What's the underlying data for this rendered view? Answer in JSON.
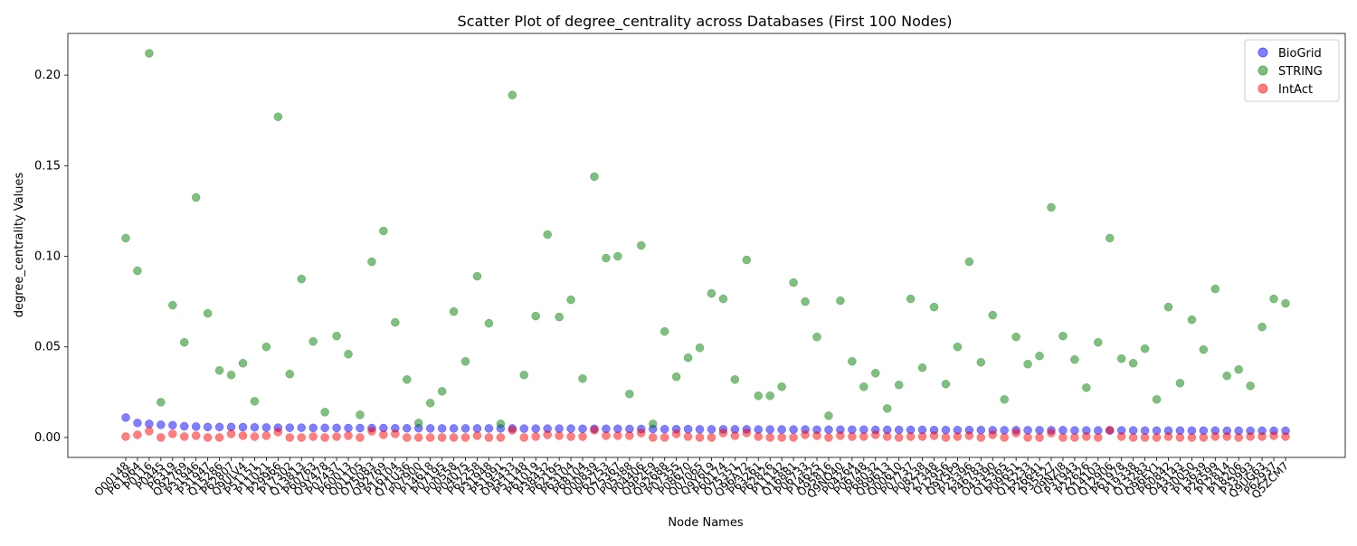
{
  "chart_data": {
    "type": "scatter",
    "title": "Scatter Plot of degree_centrality across Databases (First 100 Nodes)",
    "xlabel": "Node Names",
    "ylabel": "degree_centrality Values",
    "ylim": [
      -0.011,
      0.223
    ],
    "yticks": [
      "0.00",
      "0.05",
      "0.10",
      "0.15",
      "0.20"
    ],
    "ytick_values": [
      0,
      0.05,
      0.1,
      0.15,
      0.2
    ],
    "grid": false,
    "legend_position": "top-right",
    "categories": [
      "O00148",
      "P61964",
      "P0116",
      "P0445",
      "P6319",
      "Q92769",
      "P31946",
      "P31947",
      "Q15286",
      "P62807",
      "Q9ULV4",
      "P51151",
      "P11021",
      "P29966",
      "P17302",
      "Q13813",
      "P60763",
      "Q9Y478",
      "P07437",
      "P60013",
      "Q01105",
      "O75083",
      "Q92769",
      "P16104",
      "Q71U36",
      "P07900",
      "P14618",
      "P07195",
      "P00558",
      "P04075",
      "P62258",
      "P31948",
      "P51991",
      "O95433",
      "P51148",
      "P61019",
      "P38432",
      "P62195",
      "P63104",
      "P68104",
      "Q00839",
      "P62753",
      "O75367",
      "P05388",
      "P04406",
      "Q9P2E9",
      "Q92688",
      "P07355",
      "P08670",
      "Q07065",
      "Q9Y6L9",
      "P60174",
      "O75351",
      "Q96A72",
      "P63261",
      "P62826",
      "P11142",
      "Q16881",
      "P06733",
      "P14625",
      "O95816",
      "Q9NQ40",
      "P04264",
      "P06748",
      "P68032",
      "Q99613",
      "Q00610",
      "P07737",
      "P08238",
      "P27348",
      "P12956",
      "Q9Y5P9",
      "P23396",
      "P46783",
      "O43390",
      "Q15365",
      "P09651",
      "Q15233",
      "P26641",
      "P35527",
      "Q9NZI8",
      "P31943",
      "P22626",
      "Q14103",
      "Q12906",
      "P61978",
      "P19338",
      "Q13283",
      "Q96EY1",
      "P60842",
      "O43143",
      "P30050",
      "P13639",
      "P26599",
      "P12814",
      "P18206",
      "P33993",
      "Q9UG63",
      "P62937",
      "Q5ZCM7"
    ],
    "series": [
      {
        "name": "BioGrid",
        "color": "#0000ff",
        "values": [
          0.011,
          0.008,
          0.0075,
          0.007,
          0.0068,
          0.0062,
          0.006,
          0.0058,
          0.0058,
          0.0058,
          0.0057,
          0.0056,
          0.0055,
          0.0054,
          0.0054,
          0.0054,
          0.0053,
          0.0053,
          0.0053,
          0.0052,
          0.0052,
          0.0052,
          0.0052,
          0.0051,
          0.0051,
          0.0051,
          0.005,
          0.005,
          0.005,
          0.005,
          0.005,
          0.005,
          0.005,
          0.005,
          0.0049,
          0.0049,
          0.0049,
          0.0049,
          0.0049,
          0.0048,
          0.0048,
          0.0048,
          0.0048,
          0.0047,
          0.0047,
          0.0047,
          0.0046,
          0.0046,
          0.0046,
          0.0045,
          0.0045,
          0.0045,
          0.0045,
          0.0045,
          0.0044,
          0.0044,
          0.0044,
          0.0044,
          0.0044,
          0.0043,
          0.0043,
          0.0043,
          0.0043,
          0.0043,
          0.0042,
          0.0042,
          0.0042,
          0.0042,
          0.0042,
          0.0041,
          0.0041,
          0.0041,
          0.0041,
          0.0041,
          0.004,
          0.004,
          0.004,
          0.004,
          0.004,
          0.004,
          0.004,
          0.0039,
          0.0039,
          0.0039,
          0.0039,
          0.0039,
          0.0039,
          0.0038,
          0.0038,
          0.0038,
          0.0038,
          0.0038,
          0.0038,
          0.0038,
          0.0037,
          0.0037,
          0.0037,
          0.0037,
          0.0037,
          0.0037
        ]
      },
      {
        "name": "STRING",
        "color": "#008000",
        "values": [
          0.11,
          0.092,
          0.212,
          0.0195,
          0.073,
          0.0525,
          0.1325,
          0.0685,
          0.037,
          0.0345,
          0.041,
          0.02,
          0.05,
          0.177,
          0.035,
          0.0875,
          0.053,
          0.014,
          0.056,
          0.046,
          0.0125,
          0.097,
          0.114,
          0.0635,
          0.032,
          0.008,
          0.019,
          0.0255,
          0.0695,
          0.042,
          0.089,
          0.063,
          0.0075,
          0.189,
          0.0345,
          0.067,
          0.112,
          0.0665,
          0.076,
          0.0325,
          0.144,
          0.099,
          0.1,
          0.024,
          0.106,
          0.0075,
          0.0585,
          0.0335,
          0.044,
          0.0495,
          0.0795,
          0.0765,
          0.032,
          0.098,
          0.023,
          0.023,
          0.028,
          0.0855,
          0.075,
          0.0555,
          0.012,
          0.0755,
          0.042,
          0.028,
          0.0355,
          0.016,
          0.029,
          0.0765,
          0.0385,
          0.072,
          0.0295,
          0.05,
          0.097,
          0.0415,
          0.0675,
          0.021,
          0.0555,
          0.0405,
          0.045,
          0.127,
          0.056,
          0.043,
          0.0275,
          0.0525,
          0.11,
          0.0435,
          0.041,
          0.049,
          0.021,
          0.072,
          0.03,
          0.065,
          0.0485,
          0.082,
          0.034,
          0.0375,
          0.0285,
          0.061,
          0.0765,
          0.074
        ]
      },
      {
        "name": "IntAct",
        "color": "#ff0000",
        "values": [
          0.0005,
          0.0015,
          0.0035,
          0.0,
          0.002,
          0.0005,
          0.001,
          0.0,
          0.0,
          0.002,
          0.001,
          0.0005,
          0.001,
          0.003,
          0.0,
          0.0,
          0.0005,
          0.0,
          0.0005,
          0.001,
          0.0,
          0.0035,
          0.0015,
          0.002,
          0.0,
          0.0,
          0.0,
          0.0,
          0.0,
          0.0,
          0.001,
          0.0,
          0.0,
          0.004,
          0.0,
          0.0005,
          0.0015,
          0.001,
          0.0005,
          0.0005,
          0.004,
          0.001,
          0.001,
          0.001,
          0.0025,
          0.0,
          0.0,
          0.002,
          0.0005,
          0.0,
          0.0,
          0.0025,
          0.001,
          0.0025,
          0.0005,
          0.0,
          0.0,
          0.0,
          0.0015,
          0.001,
          0.0,
          0.001,
          0.0005,
          0.0005,
          0.0015,
          0.0005,
          0.0,
          0.0005,
          0.0005,
          0.001,
          0.0,
          0.0005,
          0.001,
          0.0,
          0.0015,
          0.0,
          0.0025,
          0.0,
          0.0,
          0.0025,
          0.0,
          0.0,
          0.0005,
          0.0,
          0.004,
          0.0005,
          0.0,
          0.0,
          0.0,
          0.0005,
          0.0,
          0.0,
          0.0,
          0.0005,
          0.0005,
          0.0,
          0.0005,
          0.0005,
          0.001,
          0.0005
        ]
      }
    ]
  }
}
